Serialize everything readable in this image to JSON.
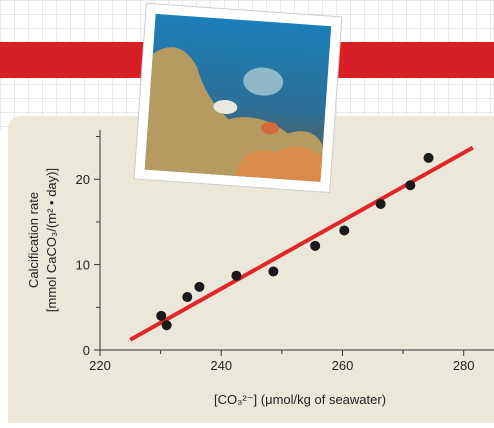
{
  "chart_data": {
    "type": "scatter",
    "x_label": "[CO₃²⁻] (μmol/kg of seawater)",
    "y_label": [
      "Calcification rate",
      "[mmol CaCO₃/(m² • day)]"
    ],
    "x": [
      230.1,
      231,
      234.4,
      236.4,
      242.5,
      248.6,
      255.5,
      260.3,
      266.3,
      271.2,
      274.2
    ],
    "values": [
      4.0,
      2.9,
      6.2,
      7.4,
      8.7,
      9.2,
      12.2,
      14.0,
      17.1,
      19.3,
      22.5
    ],
    "color": "#1a1a1a",
    "trend_line": {
      "x": [
        225,
        281.5
      ],
      "y": [
        1.2,
        23.7
      ],
      "color": "#e0262b"
    },
    "xlim": [
      220,
      285
    ],
    "ylim": [
      0,
      26
    ],
    "xticks": [
      220,
      240,
      260,
      280
    ],
    "yticks": [
      0,
      10,
      20
    ],
    "x_minor_ticks": [
      230,
      250,
      270
    ],
    "y_minor_ticks": [
      5,
      15,
      25
    ]
  }
}
